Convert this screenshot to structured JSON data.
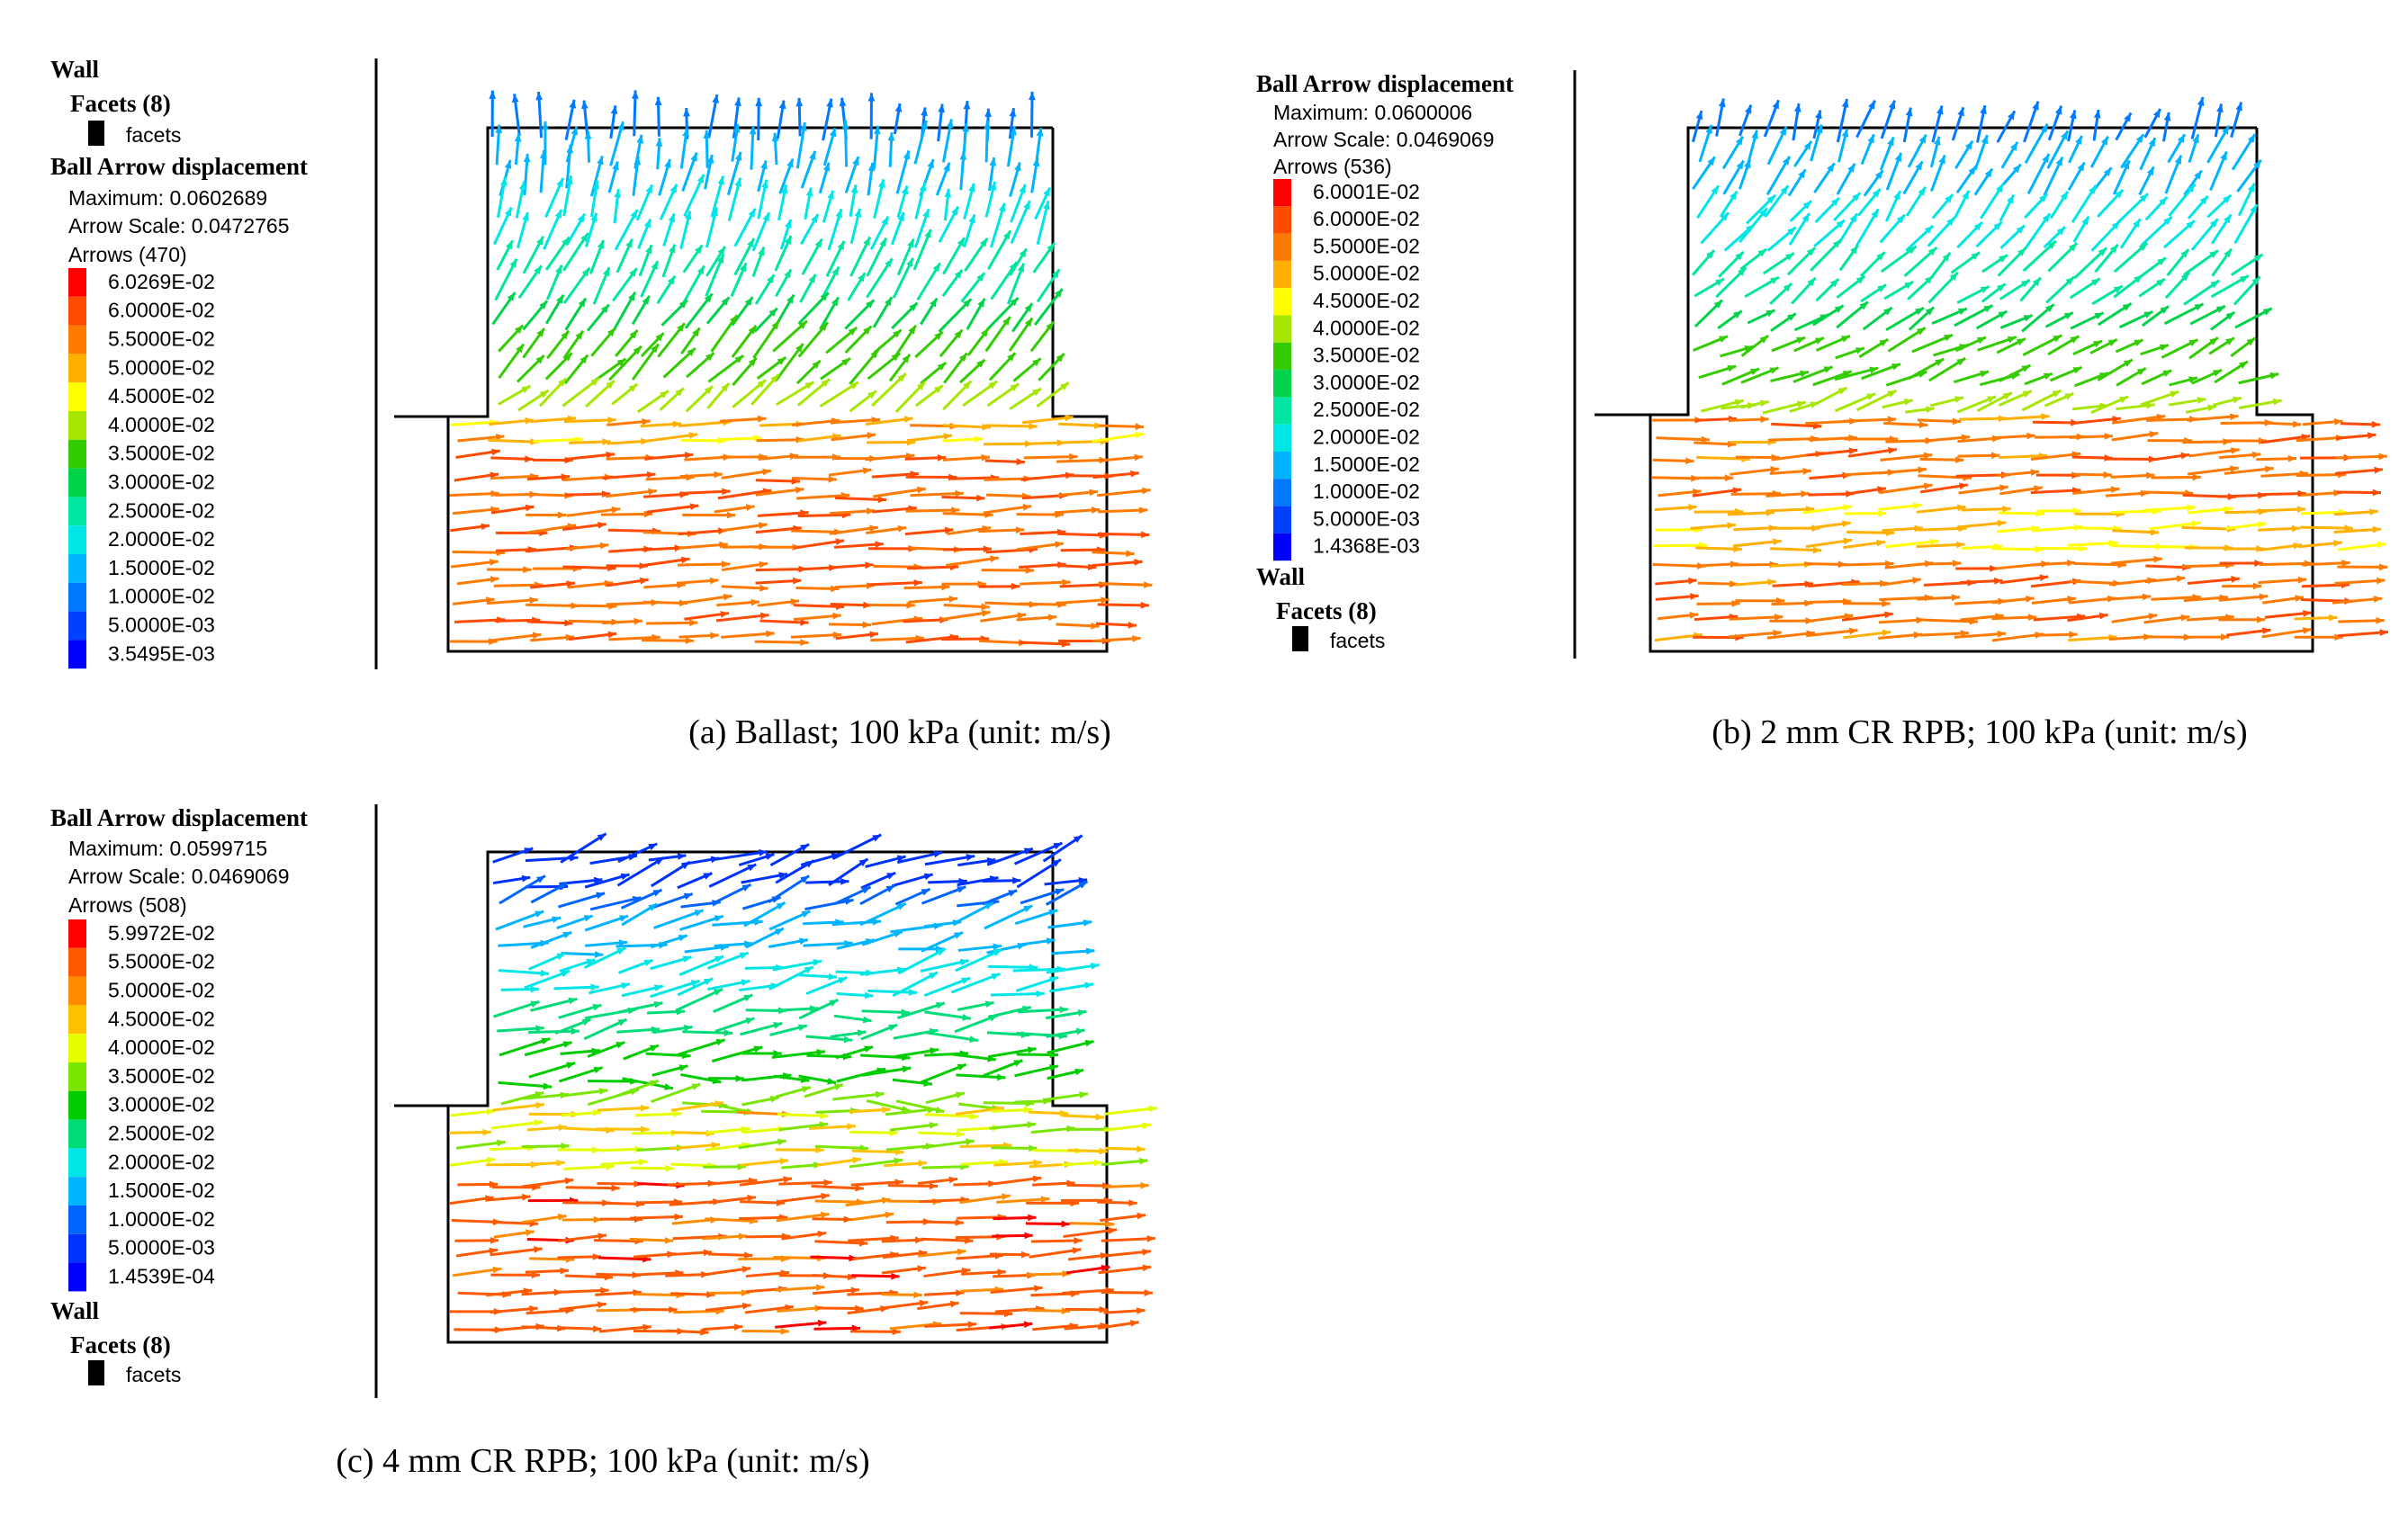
{
  "panels": [
    {
      "id": "a",
      "caption": "(a) Ballast; 100 kPa (unit: m/s)",
      "wall_title": "Wall",
      "facets_title": "Facets (8)",
      "facets_label": "facets",
      "legend_title": "Ball Arrow displacement",
      "maximum": "Maximum: 0.0602689",
      "arrow_scale": "Arrow Scale: 0.0472765",
      "arrows_count": "Arrows (470)",
      "levels": [
        {
          "label": "6.0269E-02",
          "color": "#ff0000"
        },
        {
          "label": "6.0000E-02",
          "color": "#ff4a00"
        },
        {
          "label": "5.5000E-02",
          "color": "#ff7a00"
        },
        {
          "label": "5.0000E-02",
          "color": "#ffb000"
        },
        {
          "label": "4.5000E-02",
          "color": "#ffff00"
        },
        {
          "label": "4.0000E-02",
          "color": "#a6e600"
        },
        {
          "label": "3.5000E-02",
          "color": "#33cc00"
        },
        {
          "label": "3.0000E-02",
          "color": "#00d24a"
        },
        {
          "label": "2.5000E-02",
          "color": "#00e6a0"
        },
        {
          "label": "2.0000E-02",
          "color": "#00e6e6"
        },
        {
          "label": "1.5000E-02",
          "color": "#00b4ff"
        },
        {
          "label": "1.0000E-02",
          "color": "#0078ff"
        },
        {
          "label": "5.0000E-03",
          "color": "#0040ff"
        },
        {
          "label": "3.5495E-03",
          "color": "#0000ff"
        }
      ]
    },
    {
      "id": "b",
      "caption": "(b) 2 mm CR RPB; 100 kPa (unit: m/s)",
      "wall_title": "Wall",
      "facets_title": "Facets (8)",
      "facets_label": "facets",
      "legend_title": "Ball Arrow displacement",
      "maximum": "Maximum: 0.0600006",
      "arrow_scale": "Arrow Scale: 0.0469069",
      "arrows_count": "Arrows (536)",
      "levels": [
        {
          "label": "6.0001E-02",
          "color": "#ff0000"
        },
        {
          "label": "6.0000E-02",
          "color": "#ff4a00"
        },
        {
          "label": "5.5000E-02",
          "color": "#ff7a00"
        },
        {
          "label": "5.0000E-02",
          "color": "#ffb000"
        },
        {
          "label": "4.5000E-02",
          "color": "#ffff00"
        },
        {
          "label": "4.0000E-02",
          "color": "#a6e600"
        },
        {
          "label": "3.5000E-02",
          "color": "#33cc00"
        },
        {
          "label": "3.0000E-02",
          "color": "#00d24a"
        },
        {
          "label": "2.5000E-02",
          "color": "#00e6a0"
        },
        {
          "label": "2.0000E-02",
          "color": "#00e6e6"
        },
        {
          "label": "1.5000E-02",
          "color": "#00b4ff"
        },
        {
          "label": "1.0000E-02",
          "color": "#0078ff"
        },
        {
          "label": "5.0000E-03",
          "color": "#0040ff"
        },
        {
          "label": "1.4368E-03",
          "color": "#0000ff"
        }
      ]
    },
    {
      "id": "c",
      "caption": "(c) 4 mm CR RPB; 100 kPa (unit: m/s)",
      "wall_title": "Wall",
      "facets_title": "Facets (8)",
      "facets_label": "facets",
      "legend_title": "Ball Arrow displacement",
      "maximum": "Maximum: 0.0599715",
      "arrow_scale": "Arrow Scale: 0.0469069",
      "arrows_count": "Arrows (508)",
      "levels": [
        {
          "label": "5.9972E-02",
          "color": "#ff0000"
        },
        {
          "label": "5.5000E-02",
          "color": "#ff5a00"
        },
        {
          "label": "5.0000E-02",
          "color": "#ff8c00"
        },
        {
          "label": "4.5000E-02",
          "color": "#ffc000"
        },
        {
          "label": "4.0000E-02",
          "color": "#e6ff00"
        },
        {
          "label": "3.5000E-02",
          "color": "#7ae600"
        },
        {
          "label": "3.0000E-02",
          "color": "#00cc00"
        },
        {
          "label": "2.5000E-02",
          "color": "#00dc78"
        },
        {
          "label": "2.0000E-02",
          "color": "#00e6e6"
        },
        {
          "label": "1.5000E-02",
          "color": "#00b4ff"
        },
        {
          "label": "1.0000E-02",
          "color": "#0064ff"
        },
        {
          "label": "5.0000E-03",
          "color": "#0032ff"
        },
        {
          "label": "1.4539E-04",
          "color": "#0000ff"
        }
      ]
    }
  ]
}
